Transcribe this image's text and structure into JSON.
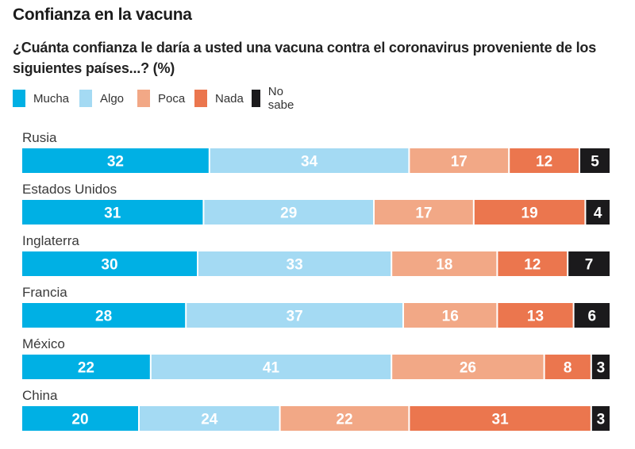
{
  "header": {
    "title": "Confianza en la vacuna",
    "subtitle": "¿Cuánta confianza le daría a usted una vacuna contra el coronavirus proveniente de los siguientes países...? (%)"
  },
  "legend": [
    {
      "label": "Mucha",
      "color": "#00b0e4"
    },
    {
      "label": "Algo",
      "color": "#a4daf3"
    },
    {
      "label": "Poca",
      "color": "#f2a886"
    },
    {
      "label": "Nada",
      "color": "#eb764e"
    },
    {
      "label": "No sabe",
      "color": "#1b1a1c"
    }
  ],
  "chart_data": {
    "type": "bar",
    "orientation": "horizontal-stacked-100",
    "title": "Confianza en la vacuna",
    "subtitle": "¿Cuánta confianza le daría a usted una vacuna contra el coronavirus proveniente de los siguientes países...? (%)",
    "xlabel": "",
    "ylabel": "",
    "xlim": [
      0,
      100
    ],
    "grid": false,
    "legend_position": "top-left",
    "categories": [
      "Rusia",
      "Estados Unidos",
      "Inglaterra",
      "Francia",
      "México",
      "China"
    ],
    "series": [
      {
        "name": "Mucha",
        "color": "#00b0e4",
        "values": [
          32,
          31,
          30,
          28,
          22,
          20
        ]
      },
      {
        "name": "Algo",
        "color": "#a4daf3",
        "values": [
          34,
          29,
          33,
          37,
          41,
          24
        ]
      },
      {
        "name": "Poca",
        "color": "#f2a886",
        "values": [
          17,
          17,
          18,
          16,
          26,
          22
        ]
      },
      {
        "name": "Nada",
        "color": "#eb764e",
        "values": [
          12,
          19,
          12,
          13,
          8,
          31
        ]
      },
      {
        "name": "No sabe",
        "color": "#1b1a1c",
        "values": [
          5,
          4,
          7,
          6,
          3,
          3
        ]
      }
    ]
  }
}
